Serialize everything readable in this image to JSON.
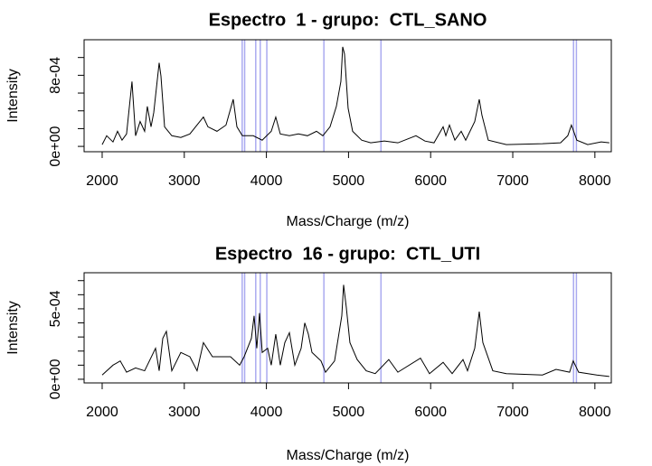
{
  "chart_data": [
    {
      "type": "line",
      "title": "Espectro  1 - grupo:  CTL_SANO",
      "xlabel": "Mass/Charge (m/z)",
      "ylabel": "Intensity",
      "xlim": [
        1780,
        8200
      ],
      "xticks": [
        2000,
        3000,
        4000,
        5000,
        6000,
        7000,
        8000
      ],
      "ylim": [
        -6e-05,
        0.0012
      ],
      "yticks": [
        {
          "value": 0,
          "label": "0e+00"
        },
        {
          "value": 0.0008,
          "label": "8e-04"
        }
      ],
      "yminor": [
        0.0002,
        0.0004,
        0.0006,
        0.001
      ],
      "vlines": [
        3705,
        3735,
        3870,
        3925,
        4005,
        4700,
        5395,
        7740,
        7775
      ],
      "vline_color": "#aaaaf0",
      "series": [
        {
          "color": "#000000",
          "x": [
            2000,
            2055,
            2132,
            2187,
            2242,
            2297,
            2363,
            2407,
            2462,
            2517,
            2550,
            2595,
            2628,
            2694,
            2716,
            2760,
            2848,
            2958,
            3068,
            3233,
            3288,
            3398,
            3508,
            3596,
            3641,
            3707,
            3839,
            3949,
            4004,
            4059,
            4114,
            4169,
            4280,
            4390,
            4500,
            4610,
            4687,
            4775,
            4852,
            4907,
            4929,
            4951,
            4995,
            5050,
            5160,
            5270,
            5436,
            5601,
            5821,
            5931,
            6041,
            6152,
            6185,
            6229,
            6295,
            6372,
            6427,
            6537,
            6592,
            6625,
            6702,
            6922,
            7362,
            7582,
            7670,
            7714,
            7780,
            7912,
            8077,
            8176
          ],
          "values": [
            2e-05,
            0.00012,
            5e-05,
            0.00017,
            7e-05,
            0.00014,
            0.00073,
            0.00012,
            0.00028,
            0.00017,
            0.00045,
            0.00022,
            0.00038,
            0.00094,
            0.00079,
            0.00022,
            0.00012,
            0.0001,
            0.00014,
            0.00033,
            0.00022,
            0.00017,
            0.00024,
            0.00053,
            0.00022,
            0.00012,
            0.00012,
            7e-05,
            0.00012,
            0.00017,
            0.00033,
            0.00014,
            0.00012,
            0.00014,
            0.00012,
            0.00017,
            0.00012,
            0.00022,
            0.00045,
            0.00073,
            0.00112,
            0.00104,
            0.00043,
            0.00017,
            7e-05,
            4e-05,
            6e-05,
            4e-05,
            0.00012,
            6e-05,
            4e-05,
            0.00022,
            0.00012,
            0.00024,
            7e-05,
            0.00017,
            7e-05,
            0.00028,
            0.00053,
            0.00035,
            7e-05,
            2e-05,
            3e-05,
            4e-05,
            0.00012,
            0.00024,
            7e-05,
            2e-05,
            5e-05,
            4e-05
          ]
        }
      ]
    },
    {
      "type": "line",
      "title": "Espectro  16 - grupo:  CTL_UTI",
      "xlabel": "Mass/Charge (m/z)",
      "ylabel": "Intensity",
      "xlim": [
        1780,
        8200
      ],
      "xticks": [
        2000,
        3000,
        4000,
        5000,
        6000,
        7000,
        8000
      ],
      "ylim": [
        -2.6e-05,
        0.000756
      ],
      "yticks": [
        {
          "value": 0,
          "label": "0e+00"
        },
        {
          "value": 0.0005,
          "label": "5e-04"
        }
      ],
      "yminor": [
        0.0001,
        0.0002,
        0.0003,
        0.0004,
        0.0006,
        0.0007
      ],
      "vlines": [
        3705,
        3735,
        3870,
        3925,
        4005,
        4700,
        5395,
        7740,
        7775
      ],
      "vline_color": "#aaaaf0",
      "series": [
        {
          "color": "#000000",
          "x": [
            2000,
            2132,
            2220,
            2297,
            2407,
            2517,
            2650,
            2694,
            2738,
            2782,
            2848,
            2958,
            3068,
            3156,
            3233,
            3343,
            3563,
            3674,
            3729,
            3817,
            3850,
            3883,
            3916,
            3949,
            4015,
            4059,
            4114,
            4169,
            4224,
            4280,
            4346,
            4423,
            4467,
            4511,
            4555,
            4665,
            4720,
            4830,
            4918,
            4940,
            4973,
            5017,
            5105,
            5215,
            5325,
            5490,
            5601,
            5876,
            5986,
            6152,
            6262,
            6394,
            6449,
            6537,
            6592,
            6636,
            6757,
            6922,
            7362,
            7527,
            7692,
            7736,
            7802,
            8022,
            8176
          ],
          "values": [
            3e-05,
            0.0001,
            0.00013,
            5e-05,
            8e-05,
            6e-05,
            0.00022,
            6e-05,
            0.00029,
            0.00034,
            6e-05,
            0.00019,
            0.00016,
            6e-05,
            0.00026,
            0.00016,
            0.00016,
            0.0001,
            0.00016,
            0.00029,
            0.00045,
            0.00022,
            0.00047,
            0.00019,
            0.00022,
            0.0001,
            0.00032,
            0.0001,
            0.00026,
            0.00033,
            0.0001,
            0.00022,
            0.0004,
            0.00032,
            0.00019,
            0.00013,
            5e-05,
            0.00013,
            0.00045,
            0.00067,
            0.00051,
            0.00026,
            0.00014,
            6e-05,
            4e-05,
            0.00014,
            5e-05,
            0.00015,
            4e-05,
            0.00012,
            4e-05,
            0.00014,
            6e-05,
            0.00022,
            0.00048,
            0.00026,
            6e-05,
            4e-05,
            3e-05,
            7e-05,
            5e-05,
            0.00013,
            5e-05,
            3e-05,
            2e-05
          ]
        }
      ]
    }
  ]
}
